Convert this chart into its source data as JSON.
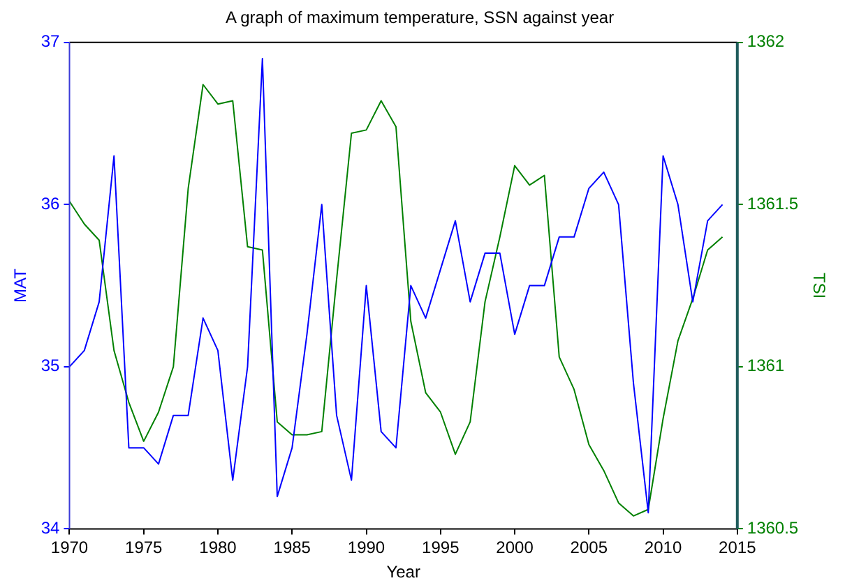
{
  "chart_data": {
    "type": "line",
    "title": "A graph of maximum temperature, SSN against year",
    "xlabel": "Year",
    "ylabel": "MAT",
    "y2label": "TSI",
    "x": [
      1970,
      1971,
      1972,
      1973,
      1974,
      1975,
      1976,
      1977,
      1978,
      1979,
      1980,
      1981,
      1982,
      1983,
      1984,
      1985,
      1986,
      1987,
      1988,
      1989,
      1990,
      1991,
      1992,
      1993,
      1994,
      1995,
      1996,
      1997,
      1998,
      1999,
      2000,
      2001,
      2002,
      2003,
      2004,
      2005,
      2006,
      2007,
      2008,
      2009,
      2010,
      2011,
      2012,
      2013,
      2014
    ],
    "series": [
      {
        "name": null,
        "color": "#0000ff",
        "values": [
          35.0,
          35.1,
          35.4,
          36.3,
          34.5,
          34.5,
          34.4,
          34.7,
          34.7,
          35.3,
          35.1,
          34.3,
          35.0,
          36.9,
          34.2,
          34.5,
          35.2,
          36.0,
          34.7,
          34.3,
          35.5,
          34.6,
          34.5,
          35.5,
          35.3,
          35.6,
          35.9,
          35.4,
          35.7,
          35.7,
          35.2,
          35.5,
          35.5,
          35.8,
          35.8,
          36.1,
          36.2,
          36.0,
          34.9,
          34.1,
          36.3,
          36.0,
          35.4,
          35.9,
          36.0
        ]
      },
      {
        "name": null,
        "color": "#008000",
        "axis": "y2",
        "values": [
          1361.51,
          1361.44,
          1361.39,
          1361.05,
          1360.89,
          1360.77,
          1360.86,
          1361.0,
          1361.55,
          1361.87,
          1361.81,
          1361.82,
          1361.37,
          1361.36,
          1360.83,
          1360.79,
          1360.79,
          1360.8,
          1361.27,
          1361.72,
          1361.73,
          1361.82,
          1361.74,
          1361.14,
          1360.92,
          1360.86,
          1360.73,
          1360.83,
          1361.2,
          1361.4,
          1361.62,
          1361.56,
          1361.59,
          1361.03,
          1360.93,
          1360.76,
          1360.68,
          1360.58,
          1360.54,
          1360.56,
          1360.84,
          1361.08,
          1361.21,
          1361.36,
          1361.4
        ]
      }
    ],
    "xlim": [
      1970,
      2015
    ],
    "xticks": [
      1970,
      1975,
      1980,
      1985,
      1990,
      1995,
      2000,
      2005,
      2010,
      2015
    ],
    "ylim": [
      34,
      37
    ],
    "yticks": [
      34,
      35,
      36,
      37
    ],
    "y2lim": [
      1360.5,
      1362
    ],
    "y2ticks": [
      1360.5,
      1361,
      1361.5,
      1362
    ],
    "grid": false,
    "legend": false,
    "marker": "none",
    "line_style": "solid"
  }
}
